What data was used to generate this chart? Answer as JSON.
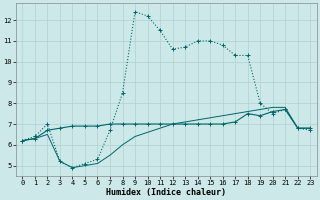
{
  "xlabel": "Humidex (Indice chaleur)",
  "background_color": "#cde8e8",
  "grid_color": "#b0d0d0",
  "line_color": "#006666",
  "xlim": [
    -0.5,
    23.5
  ],
  "ylim": [
    4.5,
    12.8
  ],
  "xticks": [
    0,
    1,
    2,
    3,
    4,
    5,
    6,
    7,
    8,
    9,
    10,
    11,
    12,
    13,
    14,
    15,
    16,
    17,
    18,
    19,
    20,
    21,
    22,
    23
  ],
  "yticks": [
    5,
    6,
    7,
    8,
    9,
    10,
    11,
    12
  ],
  "line1_x": [
    0,
    1,
    2,
    3,
    4,
    5,
    6,
    7,
    8,
    9,
    10,
    11,
    12,
    13,
    14,
    15,
    16,
    17,
    18,
    19,
    20,
    21,
    22,
    23
  ],
  "line1_y": [
    6.2,
    6.3,
    6.7,
    6.8,
    6.9,
    6.9,
    6.9,
    7.0,
    7.0,
    7.0,
    7.0,
    7.0,
    7.0,
    7.0,
    7.0,
    7.0,
    7.0,
    7.1,
    7.5,
    7.4,
    7.6,
    7.7,
    6.8,
    6.8
  ],
  "line2_x": [
    0,
    1,
    2,
    3,
    4,
    5,
    6,
    7,
    8,
    9,
    10,
    11,
    12,
    13,
    14,
    15,
    16,
    17,
    18,
    19,
    20,
    21,
    22,
    23
  ],
  "line2_y": [
    6.2,
    6.4,
    7.0,
    5.2,
    4.9,
    5.1,
    5.3,
    6.7,
    8.5,
    12.4,
    12.2,
    11.5,
    10.6,
    10.7,
    11.0,
    11.0,
    10.8,
    10.3,
    10.3,
    8.0,
    7.5,
    7.7,
    6.8,
    6.7
  ],
  "line3_x": [
    0,
    1,
    2,
    3,
    4,
    5,
    6,
    7,
    8,
    9,
    10,
    11,
    12,
    13,
    14,
    15,
    16,
    17,
    18,
    19,
    20,
    21,
    22,
    23
  ],
  "line3_y": [
    6.2,
    6.3,
    6.5,
    5.2,
    4.9,
    5.0,
    5.1,
    5.5,
    6.0,
    6.4,
    6.6,
    6.8,
    7.0,
    7.1,
    7.2,
    7.3,
    7.4,
    7.5,
    7.6,
    7.7,
    7.8,
    7.8,
    6.8,
    6.8
  ]
}
